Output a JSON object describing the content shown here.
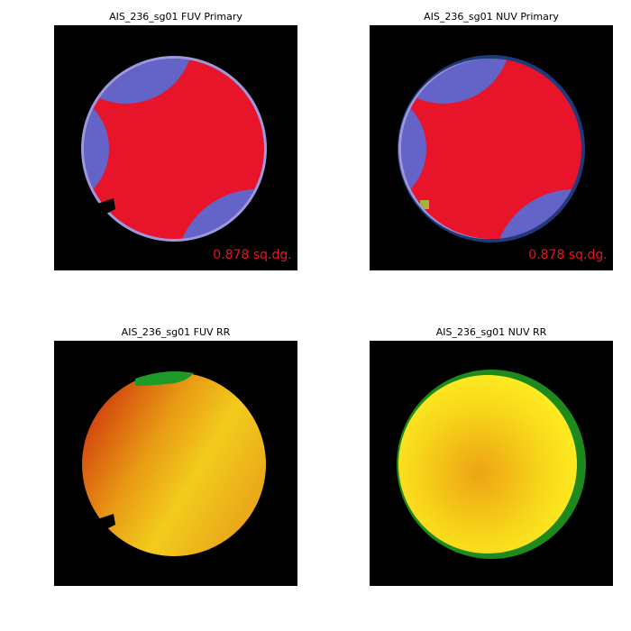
{
  "panels": [
    {
      "title": "AIS_236_sg01 FUV Primary",
      "area_label": "0.878 sq.dg."
    },
    {
      "title": "AIS_236_sg01 NUV Primary",
      "area_label": "0.878 sq.dg."
    },
    {
      "title": "AIS_236_sg01 FUV RR"
    },
    {
      "title": "AIS_236_sg01 NUV RR"
    }
  ]
}
